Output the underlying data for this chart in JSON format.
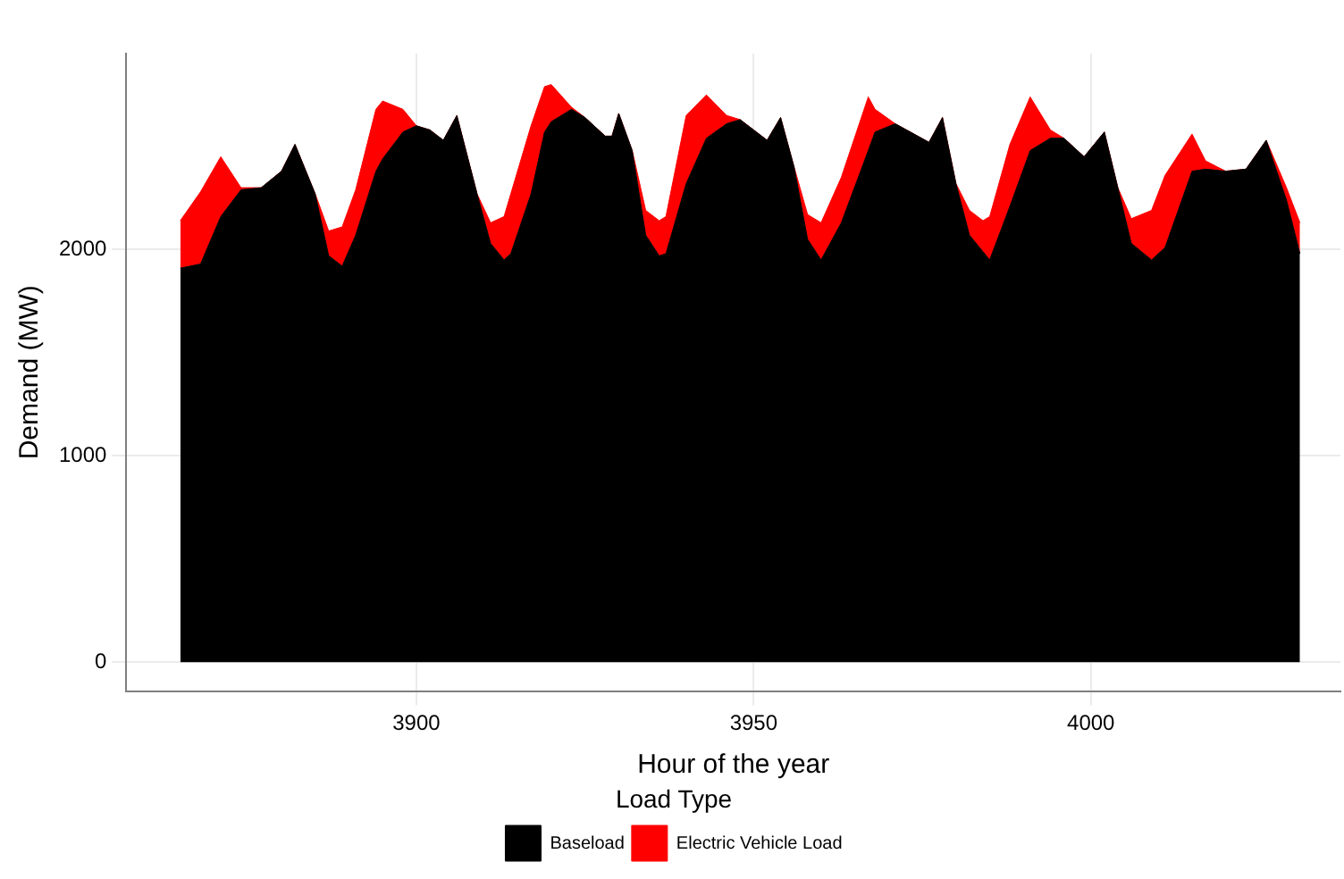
{
  "chart_data": {
    "type": "area",
    "stacked": true,
    "xlabel": "Hour of the year",
    "ylabel": "Demand (MW)",
    "legend_title": "Load Type",
    "legend": "bottom",
    "grid": true,
    "xlim": [
      3857,
      4037
    ],
    "ylim": [
      -140,
      2950
    ],
    "xticks": [
      3900,
      3950,
      4000
    ],
    "yticks": [
      0,
      1000,
      2000
    ],
    "x": [
      3865,
      3868,
      3871,
      3874,
      3877,
      3880,
      3882,
      3885,
      3887,
      3889,
      3891,
      3894,
      3895,
      3898,
      3900,
      3902,
      3904,
      3906,
      3909,
      3911,
      3913,
      3914,
      3917,
      3919,
      3920,
      3923,
      3925,
      3928,
      3929,
      3930,
      3932,
      3934,
      3936,
      3937,
      3940,
      3943,
      3946,
      3948,
      3952,
      3954,
      3956,
      3958,
      3960,
      3963,
      3967,
      3968,
      3971,
      3976,
      3978,
      3980,
      3982,
      3984,
      3985,
      3988,
      3991,
      3994,
      3996,
      3999,
      4002,
      4004,
      4006,
      4009,
      4011,
      4015,
      4017,
      4020,
      4023,
      4026,
      4029,
      4031
    ],
    "series": [
      {
        "name": "Baseload",
        "color": "#000000",
        "values": [
          1910,
          1930,
          2160,
          2290,
          2300,
          2380,
          2510,
          2270,
          1970,
          1920,
          2070,
          2380,
          2440,
          2570,
          2600,
          2580,
          2530,
          2650,
          2270,
          2030,
          1950,
          1980,
          2270,
          2570,
          2620,
          2680,
          2640,
          2550,
          2550,
          2660,
          2480,
          2070,
          1970,
          1980,
          2320,
          2540,
          2610,
          2630,
          2530,
          2640,
          2400,
          2050,
          1950,
          2130,
          2480,
          2570,
          2610,
          2520,
          2640,
          2320,
          2070,
          1990,
          1950,
          2210,
          2480,
          2540,
          2540,
          2450,
          2570,
          2300,
          2030,
          1950,
          2010,
          2380,
          2390,
          2380,
          2390,
          2530,
          2240,
          1980
        ]
      },
      {
        "name": "Electric Vehicle Load",
        "color": "#ff0000",
        "values": [
          230,
          350,
          290,
          10,
          0,
          0,
          0,
          0,
          120,
          190,
          220,
          300,
          280,
          110,
          0,
          0,
          0,
          0,
          0,
          100,
          210,
          290,
          330,
          220,
          180,
          10,
          0,
          0,
          0,
          0,
          0,
          120,
          170,
          180,
          330,
          210,
          40,
          0,
          0,
          0,
          0,
          120,
          180,
          220,
          260,
          110,
          0,
          0,
          0,
          0,
          120,
          150,
          210,
          300,
          260,
          40,
          0,
          0,
          0,
          0,
          120,
          240,
          350,
          180,
          40,
          0,
          0,
          0,
          60,
          150
        ]
      }
    ]
  }
}
